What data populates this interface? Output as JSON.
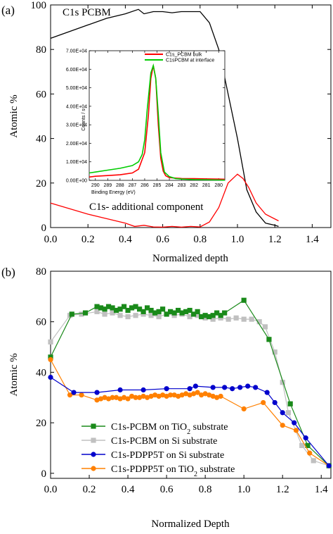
{
  "chart_data": [
    {
      "type": "line",
      "panel_label": "(a)",
      "xlabel": "Normalized depth",
      "ylabel": "Atomic %",
      "xlim": [
        0.0,
        1.5
      ],
      "ylim": [
        0,
        100
      ],
      "xticks": [
        "0.0",
        "0.2",
        "0.4",
        "0.6",
        "0.8",
        "1.0",
        "1.2",
        "1.4"
      ],
      "yticks": [
        "0",
        "20",
        "40",
        "60",
        "80",
        "100"
      ],
      "annotations": [
        "C1s PCBM",
        "C1s- additional component"
      ],
      "series": [
        {
          "color": "#000000",
          "x": [
            0.0,
            0.1,
            0.2,
            0.3,
            0.4,
            0.47,
            0.5,
            0.55,
            0.6,
            0.65,
            0.7,
            0.75,
            0.8,
            0.85,
            0.9,
            0.95,
            1.0,
            1.05,
            1.1,
            1.15,
            1.2,
            1.22
          ],
          "y": [
            85,
            88,
            91,
            94,
            96,
            98,
            96,
            97,
            97,
            96.5,
            97,
            97,
            97,
            92,
            80,
            60,
            40,
            17,
            7,
            2,
            1,
            0.5
          ]
        },
        {
          "color": "#ff0000",
          "x": [
            0.0,
            0.1,
            0.2,
            0.3,
            0.4,
            0.45,
            0.5,
            0.55,
            0.6,
            0.65,
            0.7,
            0.75,
            0.8,
            0.85,
            0.9,
            0.95,
            1.0,
            1.03,
            1.06,
            1.1,
            1.15,
            1.22
          ],
          "y": [
            11,
            8.5,
            6,
            4,
            2,
            0.5,
            1,
            0.3,
            0.2,
            0.5,
            0.2,
            0.5,
            0.3,
            2.5,
            9,
            20,
            24,
            22,
            18,
            11,
            6,
            3
          ]
        }
      ],
      "inset": {
        "type": "line",
        "xlabel": "Binding Energy (eV)",
        "ylabel": "Counts / s",
        "xlim": [
          290.5,
          279.5
        ],
        "ylim": [
          0,
          70000
        ],
        "xticks": [
          "290",
          "289",
          "288",
          "287",
          "286",
          "285",
          "284",
          "283",
          "282",
          "281",
          "280"
        ],
        "yticks": [
          "0.00E+00",
          "1.00E+04",
          "2.00E+04",
          "3.00E+04",
          "4.00E+04",
          "5.00E+04",
          "6.00E+04",
          "7.00E+04"
        ],
        "series": [
          {
            "name": "C1s_PCBM bulk",
            "color": "#ff0000",
            "x": [
              290.5,
              290,
              289,
              288,
              287,
              286.5,
              286,
              285.7,
              285.5,
              285.3,
              285.1,
              284.9,
              284.7,
              284.5,
              284.3,
              284,
              283.5,
              283,
              282,
              281,
              280,
              279.5
            ],
            "y": [
              1800,
              2200,
              2600,
              3000,
              4000,
              6000,
              15000,
              35000,
              55000,
              62000,
              55000,
              30000,
              12000,
              5000,
              2500,
              1500,
              1200,
              1000,
              900,
              800,
              700,
              600
            ]
          },
          {
            "name": "C1sPCBM at interface",
            "color": "#00cc00",
            "x": [
              290.5,
              290,
              289,
              288,
              287,
              286.5,
              286.2,
              286,
              285.8,
              285.5,
              285.3,
              285.1,
              284.9,
              284.7,
              284.4,
              284,
              283.5,
              283,
              282,
              281,
              280,
              279.5
            ],
            "y": [
              4000,
              4500,
              5500,
              6500,
              8000,
              10000,
              14000,
              22000,
              38000,
              58000,
              62000,
              55000,
              36000,
              15000,
              4500,
              2000,
              1000,
              700,
              400,
              300,
              200,
              100
            ]
          }
        ]
      }
    },
    {
      "type": "line",
      "panel_label": "(b)",
      "xlabel": "Normalized Depth",
      "ylabel": "Atomic %",
      "xlim": [
        0.0,
        1.45
      ],
      "ylim": [
        -2,
        80
      ],
      "xticks": [
        "0.0",
        "0.2",
        "0.4",
        "0.6",
        "0.8",
        "1.0",
        "1.2",
        "1.4"
      ],
      "yticks": [
        "0",
        "20",
        "40",
        "60",
        "80"
      ],
      "series": [
        {
          "name_parts": [
            "C1s-PCBM on TiO",
            "2",
            " substrate"
          ],
          "color": "#1a8a1a",
          "marker": "square",
          "x": [
            0.0,
            0.11,
            0.18,
            0.24,
            0.26,
            0.28,
            0.3,
            0.32,
            0.34,
            0.36,
            0.38,
            0.4,
            0.42,
            0.44,
            0.46,
            0.48,
            0.5,
            0.52,
            0.54,
            0.56,
            0.58,
            0.6,
            0.62,
            0.64,
            0.66,
            0.68,
            0.7,
            0.72,
            0.74,
            0.76,
            0.78,
            0.8,
            0.82,
            0.84,
            0.86,
            0.88,
            0.9,
            1.0,
            1.13,
            1.24,
            1.33,
            1.44
          ],
          "y": [
            46,
            63,
            63.5,
            66,
            65.5,
            65,
            66,
            65.5,
            64.5,
            65,
            66,
            64.5,
            65.5,
            66,
            65,
            64,
            65.5,
            64.5,
            63.5,
            64,
            65,
            63,
            64,
            63.5,
            64.5,
            63.5,
            64,
            64.5,
            63,
            64,
            62,
            62.5,
            62,
            62.5,
            63.5,
            62.5,
            63.5,
            68.5,
            53,
            27.5,
            11,
            3
          ]
        },
        {
          "name_parts": [
            "C1s-PCBM on Si substrate"
          ],
          "color": "#c0c0c0",
          "marker": "square",
          "x": [
            0.0,
            0.1,
            0.16,
            0.24,
            0.28,
            0.32,
            0.36,
            0.4,
            0.44,
            0.48,
            0.52,
            0.56,
            0.6,
            0.64,
            0.68,
            0.72,
            0.76,
            0.8,
            0.84,
            0.88,
            0.92,
            0.96,
            1.0,
            1.04,
            1.08,
            1.11,
            1.16,
            1.2,
            1.23,
            1.3,
            1.36,
            1.44
          ],
          "y": [
            52,
            62.5,
            63,
            64,
            63,
            63.5,
            62.5,
            62,
            62.5,
            63,
            62.5,
            62,
            63,
            62.5,
            63,
            62,
            62.5,
            61.5,
            61,
            61.5,
            61,
            61.5,
            61,
            61,
            60,
            58,
            48,
            36,
            24,
            11,
            5,
            3
          ]
        },
        {
          "name_parts": [
            "C1s-PDPP5T on Si substrate"
          ],
          "color": "#0000cc",
          "marker": "circle",
          "x": [
            0.0,
            0.12,
            0.24,
            0.36,
            0.48,
            0.6,
            0.72,
            0.75,
            0.84,
            0.9,
            0.94,
            0.98,
            1.02,
            1.06,
            1.12,
            1.16,
            1.2,
            1.26,
            1.32,
            1.44
          ],
          "y": [
            38,
            32,
            32,
            33,
            33,
            33.5,
            33.5,
            34.5,
            34,
            34,
            33.5,
            34,
            34.5,
            34,
            32,
            28,
            24,
            20,
            14,
            3
          ]
        },
        {
          "name_parts": [
            "C1s-PDPP5T on TiO",
            "2",
            " substrate"
          ],
          "color": "#ff8000",
          "marker": "circle",
          "x": [
            0.0,
            0.1,
            0.16,
            0.24,
            0.26,
            0.28,
            0.3,
            0.32,
            0.34,
            0.36,
            0.38,
            0.4,
            0.42,
            0.44,
            0.46,
            0.48,
            0.5,
            0.52,
            0.54,
            0.56,
            0.58,
            0.6,
            0.62,
            0.64,
            0.66,
            0.68,
            0.7,
            0.72,
            0.74,
            0.76,
            0.78,
            0.8,
            0.82,
            0.84,
            0.86,
            0.88,
            1.0,
            1.1,
            1.2,
            1.27,
            1.34,
            1.44
          ],
          "y": [
            45,
            31,
            31,
            29,
            29.5,
            30,
            29.5,
            30,
            30,
            29.5,
            30,
            29.5,
            30.5,
            30,
            30,
            30.5,
            30,
            30.5,
            31,
            30.5,
            31,
            30.5,
            31,
            31,
            30.5,
            31,
            31.5,
            31,
            31.5,
            32,
            31,
            31.5,
            31,
            30.5,
            30,
            30.5,
            25.5,
            28,
            19,
            17,
            8,
            3
          ]
        }
      ]
    }
  ]
}
